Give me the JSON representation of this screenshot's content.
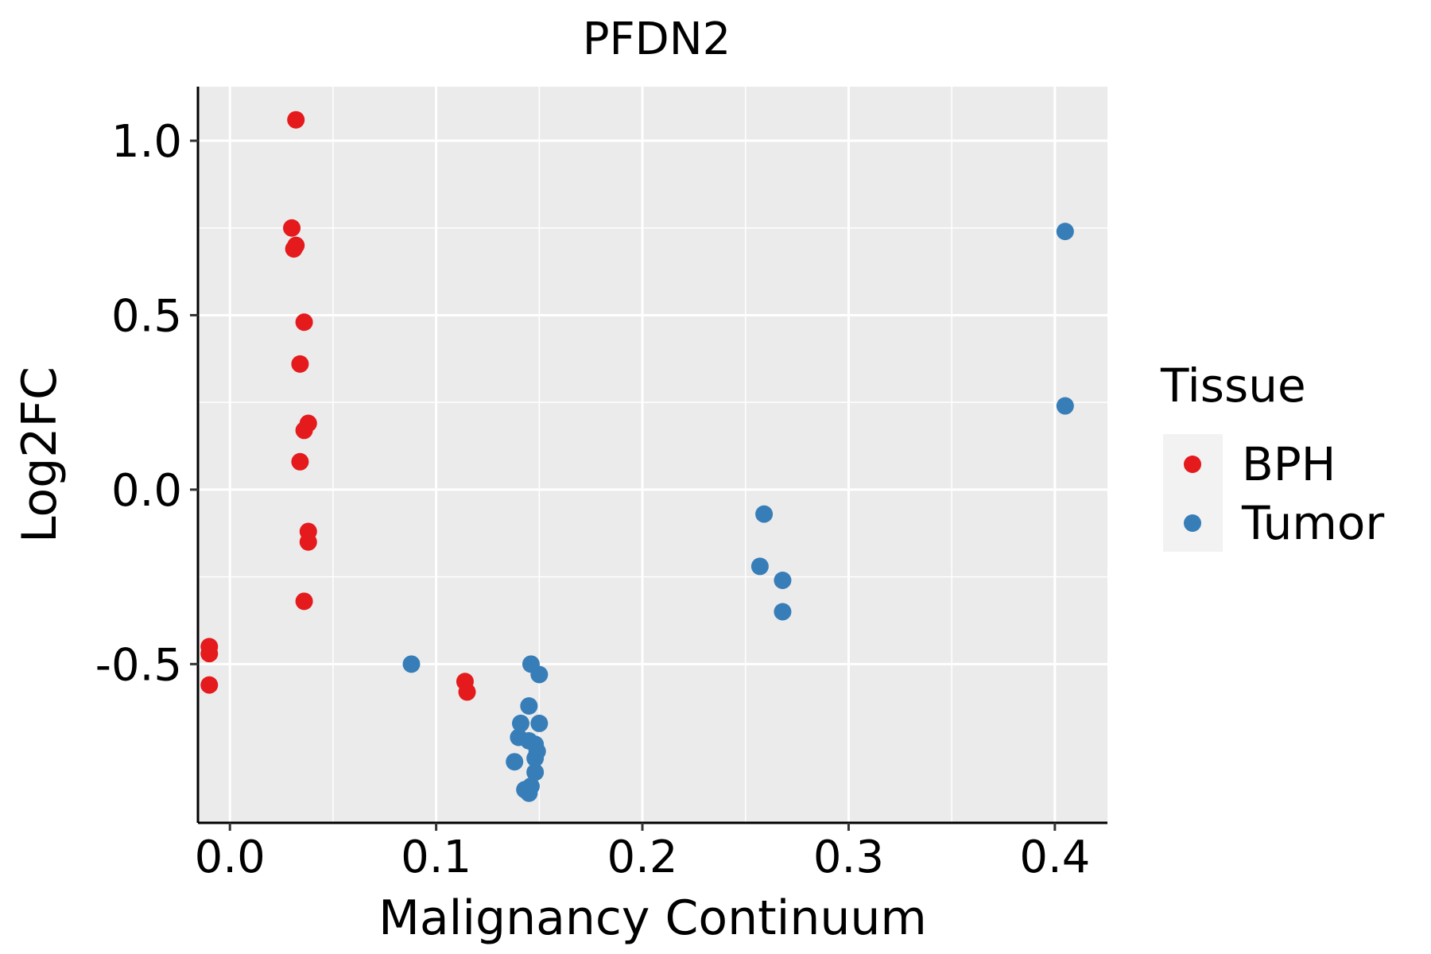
{
  "chart_data": {
    "type": "scatter",
    "title": "PFDN2",
    "xlabel": "Malignancy Continuum",
    "ylabel": "Log2FC",
    "xlim": [
      -0.0155,
      0.4255
    ],
    "ylim": [
      -0.955,
      1.155
    ],
    "x_ticks": [
      0.0,
      0.1,
      0.2,
      0.3,
      0.4
    ],
    "x_tick_labels": [
      "0.0",
      "0.1",
      "0.2",
      "0.3",
      "0.4"
    ],
    "y_ticks": [
      -0.5,
      0.0,
      0.5,
      1.0
    ],
    "y_tick_labels": [
      "-0.5",
      "0.0",
      "0.5",
      "1.0"
    ],
    "grid": true,
    "legend": {
      "title": "Tissue",
      "position": "right",
      "entries": [
        "BPH",
        "Tumor"
      ]
    },
    "series": [
      {
        "name": "BPH",
        "color": "#E41A1C",
        "points": [
          {
            "x": 0.032,
            "y": 1.06
          },
          {
            "x": 0.03,
            "y": 0.75
          },
          {
            "x": 0.032,
            "y": 0.7
          },
          {
            "x": 0.031,
            "y": 0.69
          },
          {
            "x": 0.036,
            "y": 0.48
          },
          {
            "x": 0.034,
            "y": 0.36
          },
          {
            "x": 0.038,
            "y": 0.19
          },
          {
            "x": 0.036,
            "y": 0.17
          },
          {
            "x": 0.034,
            "y": 0.08
          },
          {
            "x": 0.038,
            "y": -0.12
          },
          {
            "x": 0.038,
            "y": -0.15
          },
          {
            "x": 0.036,
            "y": -0.32
          },
          {
            "x": -0.01,
            "y": -0.45
          },
          {
            "x": -0.01,
            "y": -0.47
          },
          {
            "x": -0.01,
            "y": -0.56
          },
          {
            "x": 0.114,
            "y": -0.55
          },
          {
            "x": 0.115,
            "y": -0.58
          }
        ]
      },
      {
        "name": "Tumor",
        "color": "#377EB8",
        "points": [
          {
            "x": 0.405,
            "y": 0.74
          },
          {
            "x": 0.405,
            "y": 0.24
          },
          {
            "x": 0.259,
            "y": -0.07
          },
          {
            "x": 0.257,
            "y": -0.22
          },
          {
            "x": 0.268,
            "y": -0.26
          },
          {
            "x": 0.268,
            "y": -0.35
          },
          {
            "x": 0.088,
            "y": -0.5
          },
          {
            "x": 0.146,
            "y": -0.5
          },
          {
            "x": 0.15,
            "y": -0.53
          },
          {
            "x": 0.145,
            "y": -0.62
          },
          {
            "x": 0.141,
            "y": -0.67
          },
          {
            "x": 0.15,
            "y": -0.67
          },
          {
            "x": 0.14,
            "y": -0.71
          },
          {
            "x": 0.145,
            "y": -0.72
          },
          {
            "x": 0.148,
            "y": -0.73
          },
          {
            "x": 0.149,
            "y": -0.75
          },
          {
            "x": 0.148,
            "y": -0.77
          },
          {
            "x": 0.138,
            "y": -0.78
          },
          {
            "x": 0.148,
            "y": -0.81
          },
          {
            "x": 0.146,
            "y": -0.85
          },
          {
            "x": 0.143,
            "y": -0.86
          },
          {
            "x": 0.145,
            "y": -0.87
          }
        ]
      }
    ]
  }
}
